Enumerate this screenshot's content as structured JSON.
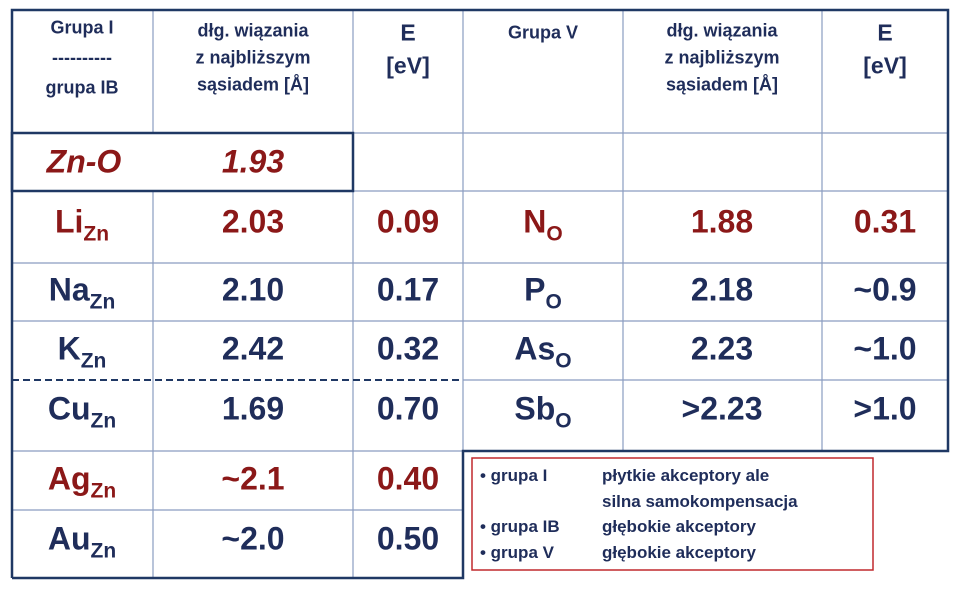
{
  "header": {
    "col1": [
      "Grupa I",
      "----------",
      "grupa  IB"
    ],
    "col2": [
      "dłg. wiązania",
      "z najbliższym",
      "sąsiadem  [Å]"
    ],
    "col3": [
      "E",
      "[eV]"
    ],
    "col4": [
      "Grupa V"
    ],
    "col5": [
      "dłg. wiązania",
      "z najbliższym",
      "sąsiadem  [Å]"
    ],
    "col6": [
      "E",
      "[eV]"
    ]
  },
  "reference": {
    "label": "Zn-O",
    "bond": "1.93"
  },
  "left_rows": [
    {
      "dopant": "Li",
      "site": "Zn",
      "bond": "2.03",
      "energy": "0.09",
      "highlight": true
    },
    {
      "dopant": "Na",
      "site": "Zn",
      "bond": "2.10",
      "energy": "0.17",
      "highlight": false
    },
    {
      "dopant": "K",
      "site": "Zn",
      "bond": "2.42",
      "energy": "0.32",
      "highlight": false
    },
    {
      "dopant": "Cu",
      "site": "Zn",
      "bond": "1.69",
      "energy": "0.70",
      "highlight": false
    },
    {
      "dopant": "Ag",
      "site": "Zn",
      "bond": "~2.1",
      "energy": "0.40",
      "highlight": true
    },
    {
      "dopant": "Au",
      "site": "Zn",
      "bond": "~2.0",
      "energy": "0.50",
      "highlight": false
    }
  ],
  "right_rows": [
    {
      "dopant": "N",
      "site": "O",
      "bond": "1.88",
      "energy": "0.31",
      "highlight": true
    },
    {
      "dopant": "P",
      "site": "O",
      "bond": "2.18",
      "energy": "~0.9",
      "highlight": false
    },
    {
      "dopant": "As",
      "site": "O",
      "bond": "2.23",
      "energy": "~1.0",
      "highlight": false
    },
    {
      "dopant": "Sb",
      "site": "O",
      "bond": ">2.23",
      "energy": ">1.0",
      "highlight": false
    }
  ],
  "legend": [
    {
      "group": "• grupa  I",
      "text": [
        "płytkie  akceptory ale",
        "silna samokompensacja"
      ]
    },
    {
      "group": "• grupa IB",
      "text": [
        "głębokie  akceptory"
      ]
    },
    {
      "group": "• grupa V",
      "text": [
        "głębokie  akceptory"
      ]
    }
  ]
}
